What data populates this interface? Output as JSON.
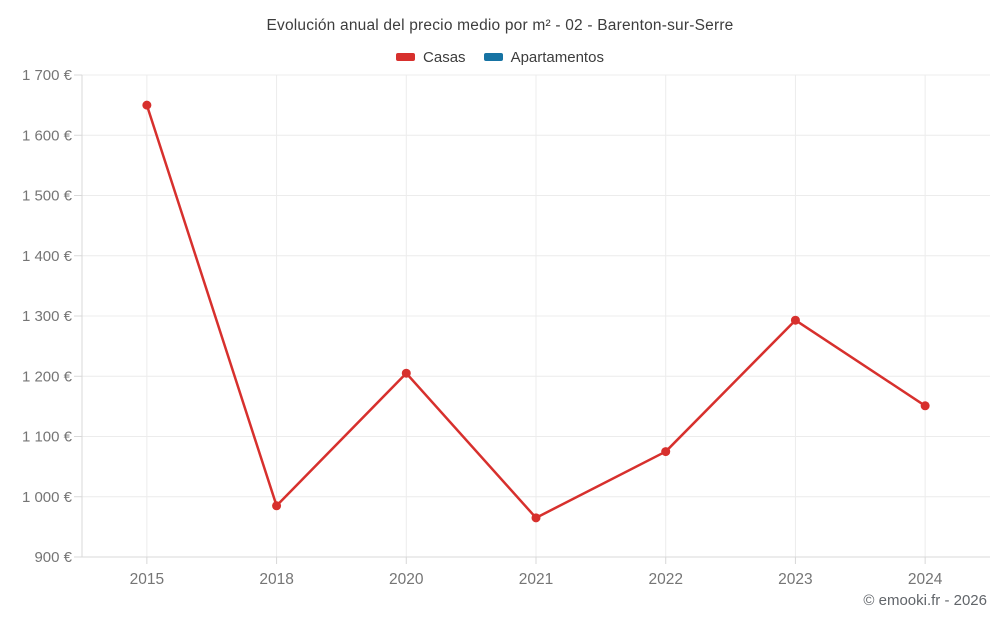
{
  "footer": {
    "copyright": "© emooki.fr - 2026"
  },
  "colors": {
    "casas": "#d7302d",
    "apartamentos": "#1673a3",
    "grid": "#ececec",
    "axis": "#d8d8d8",
    "tick_label": "#757575",
    "title_text": "#3d3d3d",
    "footer_text": "#61656a",
    "background": "#ffffff"
  },
  "chart_data": {
    "type": "line",
    "title": "Evolución anual del precio medio por m² - 02 - Barenton-sur-Serre",
    "xlabel": "",
    "ylabel": "",
    "categories": [
      "2015",
      "2018",
      "2020",
      "2021",
      "2022",
      "2023",
      "2024"
    ],
    "series": [
      {
        "name": "Casas",
        "color": "#d7302d",
        "values": [
          1650,
          985,
          1205,
          965,
          1075,
          1293,
          1151
        ]
      },
      {
        "name": "Apartamentos",
        "color": "#1673a3",
        "values": []
      }
    ],
    "ylim": [
      900,
      1700
    ],
    "y_tick_step": 100,
    "y_tick_labels": [
      "900 €",
      "1 000 €",
      "1 100 €",
      "1 200 €",
      "1 300 €",
      "1 400 €",
      "1 500 €",
      "1 600 €",
      "1 700 €"
    ],
    "grid": true,
    "legend_position": "top",
    "currency": "€"
  }
}
